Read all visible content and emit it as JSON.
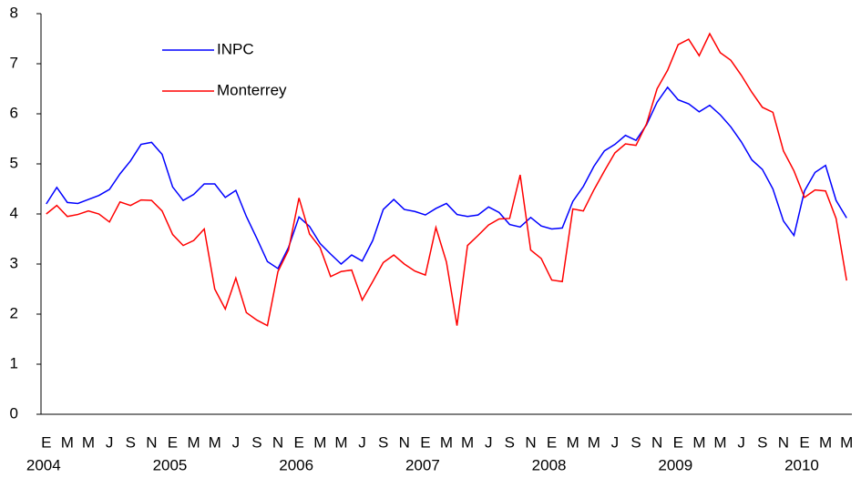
{
  "chart_data": {
    "type": "line",
    "categories": [
      "E",
      null,
      "M",
      null,
      "M",
      null,
      "J",
      null,
      "S",
      null,
      "N",
      null,
      "E",
      null,
      "M",
      null,
      "M",
      null,
      "J",
      null,
      "S",
      null,
      "N",
      null,
      "E",
      null,
      "M",
      null,
      "M",
      null,
      "J",
      null,
      "S",
      null,
      "N",
      null,
      "E",
      null,
      "M",
      null,
      "M",
      null,
      "J",
      null,
      "S",
      null,
      "N",
      null,
      "E",
      null,
      "M",
      null,
      "M",
      null,
      "J",
      null,
      "S",
      null,
      "N",
      null,
      "E",
      null,
      "M",
      null,
      "M",
      null,
      "J",
      null,
      "S",
      null,
      "N",
      null,
      "E",
      null,
      "M",
      null,
      "M"
    ],
    "years": [
      "2004",
      null,
      null,
      null,
      null,
      null,
      null,
      null,
      null,
      null,
      null,
      null,
      "2005",
      null,
      null,
      null,
      null,
      null,
      null,
      null,
      null,
      null,
      null,
      null,
      "2006",
      null,
      null,
      null,
      null,
      null,
      null,
      null,
      null,
      null,
      null,
      null,
      "2007",
      null,
      null,
      null,
      null,
      null,
      null,
      null,
      null,
      null,
      null,
      null,
      "2008",
      null,
      null,
      null,
      null,
      null,
      null,
      null,
      null,
      null,
      null,
      null,
      "2009",
      null,
      null,
      null,
      null,
      null,
      null,
      null,
      null,
      null,
      null,
      null,
      "2010",
      null,
      null,
      null,
      null
    ],
    "series": [
      {
        "name": "INPC",
        "color": "#0000ff",
        "values": [
          4.2,
          4.53,
          4.23,
          4.21,
          4.29,
          4.37,
          4.49,
          4.8,
          5.06,
          5.39,
          5.43,
          5.19,
          4.54,
          4.27,
          4.39,
          4.6,
          4.6,
          4.33,
          4.47,
          3.95,
          3.51,
          3.05,
          2.91,
          3.33,
          3.94,
          3.75,
          3.41,
          3.2,
          3.0,
          3.18,
          3.06,
          3.47,
          4.09,
          4.29,
          4.09,
          4.05,
          3.98,
          4.11,
          4.21,
          3.99,
          3.95,
          3.98,
          4.14,
          4.03,
          3.79,
          3.74,
          3.93,
          3.76,
          3.7,
          3.72,
          4.25,
          4.55,
          4.95,
          5.26,
          5.39,
          5.57,
          5.47,
          5.78,
          6.23,
          6.53,
          6.28,
          6.2,
          6.04,
          6.17,
          5.98,
          5.74,
          5.44,
          5.08,
          4.89,
          4.5,
          3.86,
          3.57,
          4.46,
          4.83,
          4.97,
          4.27,
          3.92
        ]
      },
      {
        "name": "Monterrey",
        "color": "#ff0000",
        "values": [
          4.0,
          4.17,
          3.95,
          3.99,
          4.06,
          4.0,
          3.84,
          4.24,
          4.17,
          4.28,
          4.27,
          4.06,
          3.59,
          3.37,
          3.47,
          3.7,
          2.5,
          2.1,
          2.72,
          2.03,
          1.88,
          1.77,
          2.85,
          3.28,
          4.32,
          3.6,
          3.33,
          2.75,
          2.85,
          2.88,
          2.28,
          2.65,
          3.03,
          3.18,
          3.0,
          2.86,
          2.78,
          3.73,
          3.04,
          1.77,
          3.37,
          3.57,
          3.78,
          3.9,
          3.91,
          4.78,
          3.28,
          3.11,
          2.68,
          2.65,
          4.1,
          4.06,
          4.48,
          4.86,
          5.22,
          5.4,
          5.37,
          5.8,
          6.5,
          6.87,
          7.38,
          7.49,
          7.16,
          7.6,
          7.22,
          7.07,
          6.77,
          6.43,
          6.13,
          6.03,
          5.26,
          4.86,
          4.33,
          4.48,
          4.46,
          3.91,
          2.67
        ]
      }
    ],
    "ylim": [
      0,
      8
    ],
    "yticks": [
      0,
      1,
      2,
      3,
      4,
      5,
      6,
      7,
      8
    ],
    "grid": false,
    "legend": "upper-left"
  }
}
